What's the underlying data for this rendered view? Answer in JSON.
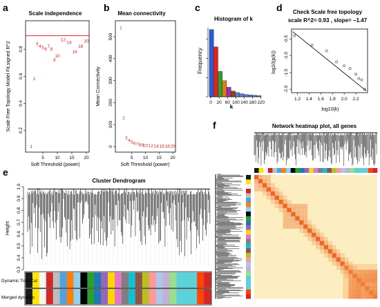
{
  "panels": {
    "a": {
      "letter": "a",
      "title": "Scale independence",
      "xlabel": "Soft Threshold (power)",
      "ylabel": "Scale Free Topology Model Fit,signed R^2"
    },
    "b": {
      "letter": "b",
      "title": "Mean connectivity",
      "xlabel": "Soft Threshold (power)",
      "ylabel": "Mean Connectivity"
    },
    "c": {
      "letter": "c",
      "title": "Histogram of k",
      "xlabel": "k",
      "ylabel": "Frequency"
    },
    "d": {
      "letter": "d",
      "title_line1": "Check Scale free topology",
      "title_line2": "scale R^2= 0.93 , slope= −1.47",
      "xlabel": "log10(k)",
      "ylabel": "log10(p(k))"
    },
    "e": {
      "letter": "e",
      "title": "Cluster Dendrogram",
      "ylabel": "Height",
      "row1": "Dynamic Tree Cut",
      "row2": "Merged dynamic"
    },
    "f": {
      "letter": "f",
      "title": "Network heatmap plot, all genes"
    }
  },
  "chart_data": [
    {
      "panel": "a",
      "type": "scatter",
      "title": "Scale independence",
      "xlabel": "Soft Threshold (power)",
      "ylabel": "Scale Free Topology Model Fit,signed R^2",
      "xlim": [
        0,
        20
      ],
      "ylim": [
        0.05,
        1.0
      ],
      "xticks": [
        5,
        10,
        15,
        20
      ],
      "yticks": [
        0.2,
        0.4,
        0.6,
        0.8
      ],
      "points": [
        {
          "label": "1",
          "x": 1,
          "y": 0.08
        },
        {
          "label": "2",
          "x": 2,
          "y": 0.58
        },
        {
          "label": "3",
          "x": 3,
          "y": 0.84
        },
        {
          "label": "4",
          "x": 4,
          "y": 0.82
        },
        {
          "label": "5",
          "x": 5,
          "y": 0.81
        },
        {
          "label": "6",
          "x": 6,
          "y": 0.8
        },
        {
          "label": "7",
          "x": 7,
          "y": 0.82
        },
        {
          "label": "8",
          "x": 8,
          "y": 0.8
        },
        {
          "label": "9",
          "x": 9,
          "y": 0.72
        },
        {
          "label": "10",
          "x": 10,
          "y": 0.75
        },
        {
          "label": "12",
          "x": 12,
          "y": 0.87
        },
        {
          "label": "14",
          "x": 14,
          "y": 0.85
        },
        {
          "label": "16",
          "x": 16,
          "y": 0.78
        },
        {
          "label": "18",
          "x": 18,
          "y": 0.82
        },
        {
          "label": "20",
          "x": 20,
          "y": 0.86
        }
      ],
      "hline": 0.9,
      "color": "#e8211b"
    },
    {
      "panel": "b",
      "type": "scatter",
      "title": "Mean connectivity",
      "xlabel": "Soft Threshold (power)",
      "ylabel": "Mean Connectivity",
      "xlim": [
        0,
        20
      ],
      "ylim": [
        0,
        560
      ],
      "xticks": [
        5,
        10,
        15,
        20
      ],
      "yticks": [
        0,
        100,
        200,
        300,
        400,
        500
      ],
      "points": [
        {
          "label": "1",
          "x": 1,
          "y": 540
        },
        {
          "label": "2",
          "x": 2,
          "y": 130
        },
        {
          "label": "3",
          "x": 3,
          "y": 40
        },
        {
          "label": "4",
          "x": 4,
          "y": 28
        },
        {
          "label": "5",
          "x": 5,
          "y": 20
        },
        {
          "label": "6",
          "x": 6,
          "y": 14
        },
        {
          "label": "7",
          "x": 7,
          "y": 11
        },
        {
          "label": "8",
          "x": 8,
          "y": 8
        },
        {
          "label": "9",
          "x": 9,
          "y": 6
        },
        {
          "label": "10",
          "x": 10,
          "y": 4
        },
        {
          "label": "12",
          "x": 12,
          "y": 3
        },
        {
          "label": "14",
          "x": 14,
          "y": 2
        },
        {
          "label": "16",
          "x": 16,
          "y": 1
        },
        {
          "label": "18",
          "x": 18,
          "y": 1
        },
        {
          "label": "20",
          "x": 20,
          "y": 1
        }
      ],
      "color": "#e8211b"
    },
    {
      "panel": "c",
      "type": "bar",
      "title": "Histogram of k",
      "xlabel": "k",
      "ylabel": "Frequency",
      "categories": [
        "0-20",
        "20-40",
        "40-60",
        "60-80",
        "80-100",
        "100-120",
        "120-140",
        "140-160",
        "160-180",
        "180-200",
        "200-220",
        "220-240"
      ],
      "values": [
        1750,
        1300,
        660,
        420,
        250,
        150,
        110,
        80,
        60,
        50,
        40,
        30
      ],
      "colors": [
        "#2a5bd7",
        "#e8211b",
        "#33a02c",
        "#e07b18",
        "#9b2fae",
        "#8b4513",
        "#5b7fc7",
        "#5b7fc7",
        "#5b7fc7",
        "#5b7fc7",
        "#5b7fc7",
        "#5b7fc7"
      ],
      "xticks": [
        "0",
        "20",
        "60",
        "100",
        "140",
        "180",
        "220"
      ],
      "ylim": [
        0,
        1800
      ]
    },
    {
      "panel": "d",
      "type": "scatter",
      "title": "Check Scale free topology",
      "subtitle": "scale R^2= 0.93 , slope= −1.47",
      "xlabel": "log10(k)",
      "ylabel": "log10(p(k))",
      "xlim": [
        1.1,
        2.4
      ],
      "ylim": [
        -2.1,
        -0.2
      ],
      "xticks": [
        "1.2",
        "1.4",
        "1.6",
        "1.8",
        "2.0",
        "2.2"
      ],
      "yticks": [
        "-0.5",
        "-1.0",
        "-1.5",
        "-2.0"
      ],
      "points": [
        {
          "x": 1.15,
          "y": -0.4
        },
        {
          "x": 1.45,
          "y": -0.68
        },
        {
          "x": 1.7,
          "y": -0.85
        },
        {
          "x": 1.87,
          "y": -1.18
        },
        {
          "x": 2.0,
          "y": -1.3
        },
        {
          "x": 2.1,
          "y": -1.38
        },
        {
          "x": 2.2,
          "y": -1.55
        },
        {
          "x": 2.25,
          "y": -1.68
        },
        {
          "x": 2.3,
          "y": -1.72
        },
        {
          "x": 2.35,
          "y": -2.0
        }
      ],
      "fit": {
        "x0": 1.12,
        "y0": -0.28,
        "x1": 2.38,
        "y1": -2.05
      }
    }
  ],
  "module_colors": [
    "#1a1a1a",
    "#ffe600",
    "#f5f5f5",
    "#d62728",
    "#bdbdbd",
    "#4fa3e0",
    "#ff7f0e",
    "#8fd0f0",
    "#000000",
    "#2ca02c",
    "#1f77b4",
    "#9467bd",
    "#ffd700",
    "#e377c2",
    "#7f7f7f",
    "#17becf",
    "#8c564b",
    "#bcbd22",
    "#ff9896",
    "#aec7e8",
    "#c5b0d5",
    "#98df8a",
    "#5cd1d8",
    "#5cd1d8",
    "#5cd1d8",
    "#ff4500",
    "#d62728"
  ]
}
